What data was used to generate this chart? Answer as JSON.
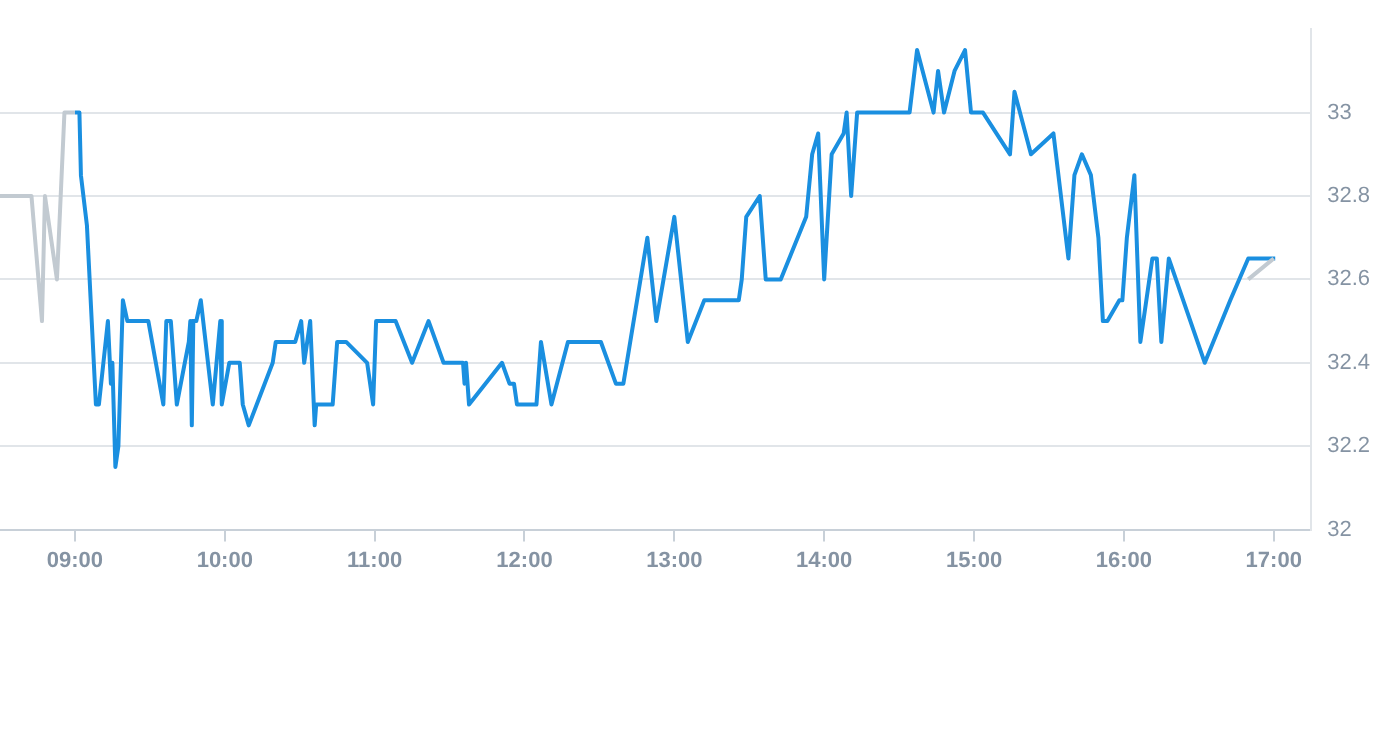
{
  "chart_data": {
    "type": "line",
    "xlim": [
      8.5,
      17.25
    ],
    "ylim": [
      32,
      33.2
    ],
    "xticks": [
      {
        "value": 9,
        "label": "09:00"
      },
      {
        "value": 10,
        "label": "10:00"
      },
      {
        "value": 11,
        "label": "11:00"
      },
      {
        "value": 12,
        "label": "12:00"
      },
      {
        "value": 13,
        "label": "13:00"
      },
      {
        "value": 14,
        "label": "14:00"
      },
      {
        "value": 15,
        "label": "15:00"
      },
      {
        "value": 16,
        "label": "16:00"
      },
      {
        "value": 17,
        "label": "17:00"
      }
    ],
    "yticks": [
      32,
      32.2,
      32.4,
      32.6,
      32.8,
      33
    ],
    "grid": "y",
    "legend": false,
    "marker": "none",
    "line_style": "solid",
    "series": [
      {
        "color": "#c2cad1",
        "x": [
          8.5,
          8.71,
          8.78,
          8.8,
          8.88,
          8.93,
          9.0,
          9.01,
          16.83,
          17.0
        ],
        "values": [
          32.8,
          32.8,
          32.5,
          32.8,
          32.6,
          33.0,
          33.0,
          null,
          32.6,
          32.65
        ]
      },
      {
        "color": "#1a8fe0",
        "x": [
          9.0,
          9.03,
          9.04,
          9.08,
          9.14,
          9.16,
          9.22,
          9.24,
          9.25,
          9.27,
          9.29,
          9.32,
          9.35,
          9.49,
          9.59,
          9.61,
          9.64,
          9.68,
          9.76,
          9.77,
          9.78,
          9.79,
          9.81,
          9.84,
          9.92,
          9.97,
          9.98,
          10.03,
          10.1,
          10.12,
          10.16,
          10.32,
          10.34,
          10.47,
          10.51,
          10.53,
          10.57,
          10.6,
          10.61,
          10.72,
          10.75,
          10.81,
          10.95,
          10.99,
          11.01,
          11.14,
          11.25,
          11.36,
          11.46,
          11.59,
          11.6,
          11.61,
          11.63,
          11.85,
          11.9,
          11.93,
          11.95,
          12.08,
          12.11,
          12.18,
          12.29,
          12.51,
          12.61,
          12.66,
          12.82,
          12.88,
          13.0,
          13.09,
          13.2,
          13.43,
          13.45,
          13.48,
          13.57,
          13.61,
          13.71,
          13.88,
          13.92,
          13.96,
          14.0,
          14.05,
          14.13,
          14.15,
          14.18,
          14.22,
          14.57,
          14.62,
          14.73,
          14.76,
          14.8,
          14.87,
          14.94,
          14.98,
          15.06,
          15.24,
          15.27,
          15.38,
          15.53,
          15.63,
          15.67,
          15.72,
          15.78,
          15.83,
          15.86,
          15.89,
          15.97,
          15.99,
          16.02,
          16.07,
          16.11,
          16.19,
          16.22,
          16.25,
          16.3,
          16.54,
          16.71,
          16.83,
          17.01
        ],
        "values": [
          33.0,
          33.0,
          32.85,
          32.73,
          32.3,
          32.3,
          32.5,
          32.35,
          32.4,
          32.15,
          32.2,
          32.55,
          32.5,
          32.5,
          32.3,
          32.5,
          32.5,
          32.3,
          32.45,
          32.5,
          32.25,
          32.5,
          32.5,
          32.55,
          32.3,
          32.5,
          32.3,
          32.4,
          32.4,
          32.3,
          32.25,
          32.4,
          32.45,
          32.45,
          32.5,
          32.4,
          32.5,
          32.25,
          32.3,
          32.3,
          32.45,
          32.45,
          32.4,
          32.3,
          32.5,
          32.5,
          32.4,
          32.5,
          32.4,
          32.4,
          32.35,
          32.4,
          32.3,
          32.4,
          32.35,
          32.35,
          32.3,
          32.3,
          32.45,
          32.3,
          32.45,
          32.45,
          32.35,
          32.35,
          32.7,
          32.5,
          32.75,
          32.45,
          32.55,
          32.55,
          32.6,
          32.75,
          32.8,
          32.6,
          32.6,
          32.75,
          32.9,
          32.95,
          32.6,
          32.9,
          32.95,
          33.0,
          32.8,
          33.0,
          33.0,
          33.15,
          33.0,
          33.1,
          33.0,
          33.1,
          33.15,
          33.0,
          33.0,
          32.9,
          33.05,
          32.9,
          32.95,
          32.65,
          32.85,
          32.9,
          32.85,
          32.7,
          32.5,
          32.5,
          32.55,
          32.55,
          32.7,
          32.85,
          32.45,
          32.65,
          32.65,
          32.45,
          32.65,
          32.4,
          32.55,
          32.65,
          32.65
        ]
      }
    ]
  }
}
